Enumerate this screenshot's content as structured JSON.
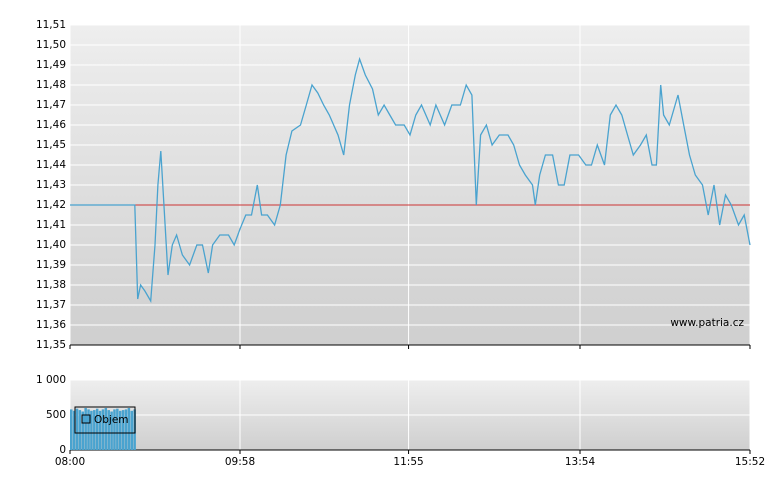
{
  "chart_data": [
    {
      "type": "line",
      "watermark": "www.patria.cz",
      "x": [
        "08:00",
        "08:45",
        "08:47",
        "08:49",
        "08:52",
        "08:56",
        "08:59",
        "09:01",
        "09:03",
        "09:06",
        "09:08",
        "09:11",
        "09:14",
        "09:18",
        "09:23",
        "09:28",
        "09:32",
        "09:36",
        "09:39",
        "09:44",
        "09:50",
        "09:54",
        "09:58",
        "10:02",
        "10:06",
        "10:10",
        "10:13",
        "10:17",
        "10:22",
        "10:26",
        "10:30",
        "10:34",
        "10:40",
        "10:44",
        "10:48",
        "10:52",
        "10:56",
        "11:00",
        "11:06",
        "11:10",
        "11:14",
        "11:18",
        "11:21",
        "11:25",
        "11:30",
        "11:34",
        "11:38",
        "11:42",
        "11:46",
        "11:52",
        "11:56",
        "12:00",
        "12:04",
        "12:10",
        "12:14",
        "12:20",
        "12:25",
        "12:31",
        "12:35",
        "12:39",
        "12:42",
        "12:45",
        "12:49",
        "12:53",
        "12:58",
        "13:04",
        "13:08",
        "13:12",
        "13:16",
        "13:21",
        "13:23",
        "13:26",
        "13:30",
        "13:35",
        "13:39",
        "13:43",
        "13:47",
        "13:53",
        "13:58",
        "14:02",
        "14:06",
        "14:11",
        "14:15",
        "14:19",
        "14:23",
        "14:27",
        "14:31",
        "14:36",
        "14:40",
        "14:44",
        "14:47",
        "14:50",
        "14:52",
        "14:56",
        "15:02",
        "15:06",
        "15:10",
        "15:14",
        "15:19",
        "15:23",
        "15:27",
        "15:31",
        "15:35",
        "15:39",
        "15:44",
        "15:48",
        "15:52"
      ],
      "values": [
        11.42,
        11.42,
        11.373,
        11.38,
        11.377,
        11.372,
        11.4,
        11.43,
        11.447,
        11.41,
        11.385,
        11.4,
        11.405,
        11.395,
        11.39,
        11.4,
        11.4,
        11.386,
        11.4,
        11.405,
        11.405,
        11.4,
        11.408,
        11.415,
        11.415,
        11.43,
        11.415,
        11.415,
        11.41,
        11.42,
        11.445,
        11.457,
        11.46,
        11.47,
        11.48,
        11.476,
        11.47,
        11.465,
        11.455,
        11.445,
        11.47,
        11.485,
        11.493,
        11.485,
        11.478,
        11.465,
        11.47,
        11.465,
        11.46,
        11.46,
        11.455,
        11.465,
        11.47,
        11.46,
        11.47,
        11.46,
        11.47,
        11.47,
        11.48,
        11.475,
        11.42,
        11.455,
        11.46,
        11.45,
        11.455,
        11.455,
        11.45,
        11.44,
        11.435,
        11.43,
        11.42,
        11.435,
        11.445,
        11.445,
        11.43,
        11.43,
        11.445,
        11.445,
        11.44,
        11.44,
        11.45,
        11.44,
        11.465,
        11.47,
        11.465,
        11.455,
        11.445,
        11.45,
        11.455,
        11.44,
        11.44,
        11.48,
        11.465,
        11.46,
        11.475,
        11.46,
        11.445,
        11.435,
        11.43,
        11.415,
        11.43,
        11.41,
        11.425,
        11.42,
        11.41,
        11.415,
        11.4
      ],
      "color": "#4aa3cf",
      "reference_line": {
        "value": 11.42,
        "color": "#cc3333"
      },
      "xlim": [
        "08:00",
        "15:52"
      ],
      "xticks": [
        "08:00",
        "09:58",
        "11:55",
        "13:54",
        "15:52"
      ],
      "ylim": [
        11.35,
        11.51
      ],
      "yticks": [
        {
          "value": 11.35,
          "label": "11,35"
        },
        {
          "value": 11.36,
          "label": "11,36"
        },
        {
          "value": 11.37,
          "label": "11,37"
        },
        {
          "value": 11.38,
          "label": "11,38"
        },
        {
          "value": 11.39,
          "label": "11,39"
        },
        {
          "value": 11.4,
          "label": "11,40"
        },
        {
          "value": 11.41,
          "label": "11,41"
        },
        {
          "value": 11.42,
          "label": "11,42"
        },
        {
          "value": 11.43,
          "label": "11,43"
        },
        {
          "value": 11.44,
          "label": "11,44"
        },
        {
          "value": 11.45,
          "label": "11,45"
        },
        {
          "value": 11.46,
          "label": "11,46"
        },
        {
          "value": 11.47,
          "label": "11,47"
        },
        {
          "value": 11.48,
          "label": "11,48"
        },
        {
          "value": 11.49,
          "label": "11,49"
        },
        {
          "value": 11.5,
          "label": "11,50"
        },
        {
          "value": 11.51,
          "label": "11,51"
        }
      ],
      "grid": true
    },
    {
      "type": "bar",
      "series": [
        {
          "name": "Objem",
          "color": "#4aa3cf",
          "x": [
            "08:00",
            "08:02",
            "08:04",
            "08:06",
            "08:08",
            "08:10",
            "08:12",
            "08:14",
            "08:16",
            "08:18",
            "08:20",
            "08:22",
            "08:24",
            "08:26",
            "08:28",
            "08:30",
            "08:32",
            "08:34",
            "08:36",
            "08:38",
            "08:40",
            "08:42",
            "08:44"
          ],
          "values": [
            580,
            560,
            590,
            570,
            550,
            600,
            580,
            560,
            570,
            590,
            560,
            580,
            600,
            570,
            550,
            580,
            590,
            560,
            570,
            580,
            600,
            560,
            580
          ]
        }
      ],
      "xlim": [
        "08:00",
        "15:52"
      ],
      "xticks": [
        "08:00",
        "09:58",
        "11:55",
        "13:54",
        "15:52"
      ],
      "ylim": [
        0,
        1000
      ],
      "yticks": [
        0,
        500,
        {
          "value": 1000,
          "label": "1 000"
        }
      ],
      "grid": true
    }
  ]
}
